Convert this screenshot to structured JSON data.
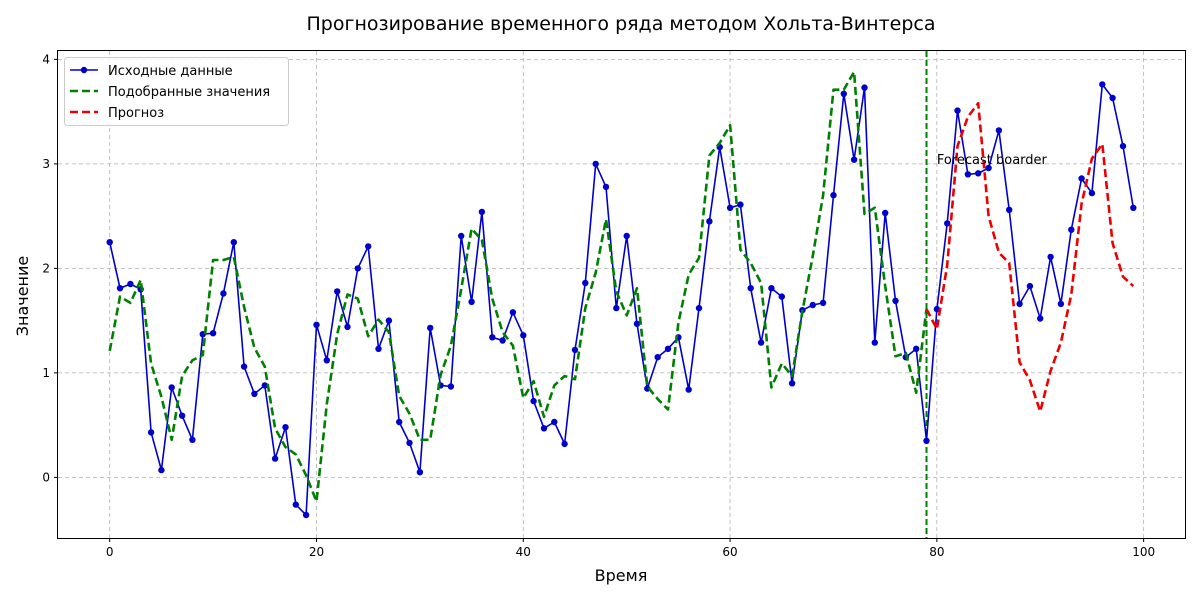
{
  "chart_data": {
    "type": "line",
    "title": "Прогнозирование временного ряда методом Хольта-Винтерса",
    "xlabel": "Время",
    "ylabel": "Значение",
    "xlim": [
      -5,
      104
    ],
    "ylim": [
      -0.58,
      4.08
    ],
    "x_ticks": [
      0,
      20,
      40,
      60,
      80,
      100
    ],
    "y_ticks": [
      0,
      1,
      2,
      3,
      4
    ],
    "grid": true,
    "legend_position": "top-left",
    "annotation": {
      "text": "Forecast boarder",
      "x": 80,
      "y": 3.0
    },
    "vline": {
      "x": 79,
      "color": "#008000",
      "style": "dashed"
    },
    "series": [
      {
        "name": "Исходные данные",
        "color": "#0000cc",
        "style": "solid-marker",
        "x_start": 0,
        "values": [
          2.25,
          1.81,
          1.85,
          1.8,
          0.43,
          0.07,
          0.86,
          0.59,
          0.36,
          1.37,
          1.38,
          1.76,
          2.25,
          1.06,
          0.8,
          0.88,
          0.18,
          0.48,
          -0.26,
          -0.36,
          1.46,
          1.12,
          1.78,
          1.44,
          2.0,
          2.21,
          1.23,
          1.5,
          0.53,
          0.33,
          0.05,
          1.43,
          0.88,
          0.87,
          2.31,
          1.68,
          2.54,
          1.34,
          1.31,
          1.58,
          1.36,
          0.73,
          0.47,
          0.53,
          0.32,
          1.22,
          1.86,
          3.0,
          2.78,
          1.62,
          2.31,
          1.47,
          0.85,
          1.15,
          1.23,
          1.34,
          0.84,
          1.62,
          2.45,
          3.16,
          2.58,
          2.61,
          1.81,
          1.29,
          1.81,
          1.73,
          0.9,
          1.6,
          1.65,
          1.67,
          2.7,
          3.67,
          3.04,
          3.73,
          1.29,
          2.53,
          1.69,
          1.15,
          1.23,
          0.35,
          1.61,
          2.43,
          3.51,
          2.9,
          2.91,
          2.96,
          3.32,
          2.56,
          1.66,
          1.83,
          1.52,
          2.11,
          1.66,
          2.37,
          2.86,
          2.72,
          3.76,
          3.63,
          3.17,
          2.58
        ]
      },
      {
        "name": "Подобранные значения",
        "color": "#008000",
        "style": "dashed",
        "x_start": 0,
        "values": [
          1.21,
          1.73,
          1.67,
          1.89,
          1.09,
          0.77,
          0.36,
          0.97,
          1.12,
          1.17,
          2.08,
          2.08,
          2.11,
          1.63,
          1.24,
          1.06,
          0.47,
          0.29,
          0.22,
          0.02,
          -0.23,
          0.7,
          1.37,
          1.75,
          1.71,
          1.35,
          1.51,
          1.39,
          0.78,
          0.61,
          0.36,
          0.36,
          0.98,
          1.26,
          1.8,
          2.38,
          2.27,
          1.71,
          1.39,
          1.26,
          0.76,
          0.92,
          0.58,
          0.88,
          0.97,
          0.94,
          1.62,
          1.96,
          2.47,
          1.78,
          1.55,
          1.81,
          0.87,
          0.75,
          0.65,
          1.48,
          1.94,
          2.1,
          3.08,
          3.2,
          3.37,
          2.18,
          2.05,
          1.86,
          0.86,
          1.09,
          0.97,
          1.59,
          2.12,
          2.7,
          3.71,
          3.71,
          3.88,
          2.52,
          2.58,
          1.83,
          1.16,
          1.19,
          0.81,
          1.61
        ]
      },
      {
        "name": "Прогноз",
        "color": "#ee0000",
        "style": "dashed",
        "x_start": 79,
        "values": [
          1.61,
          1.42,
          2.03,
          3.17,
          3.45,
          3.58,
          2.5,
          2.15,
          2.05,
          1.1,
          0.93,
          0.63,
          1.02,
          1.29,
          1.75,
          2.62,
          3.05,
          3.19,
          2.24,
          1.92,
          1.83
        ]
      }
    ]
  }
}
